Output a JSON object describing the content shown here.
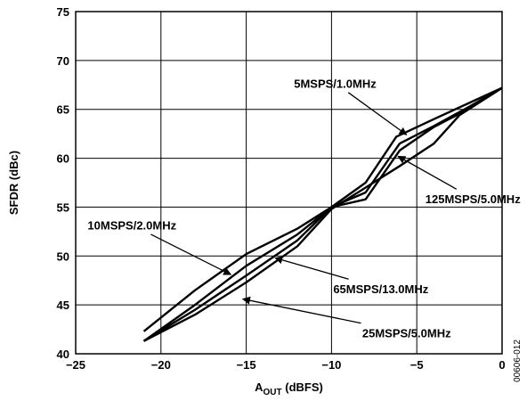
{
  "chart_data": {
    "type": "line",
    "title": "",
    "xlabel_main": "A",
    "xlabel_sub": "OUT",
    "xlabel_rest": " (dBFS)",
    "ylabel": "SFDR (dBc)",
    "xlim": [
      -25,
      0
    ],
    "ylim": [
      40,
      75
    ],
    "grid": true,
    "xticks": [
      -25,
      -20,
      -15,
      -10,
      -5,
      0
    ],
    "xtick_labels": [
      "−25",
      "−20",
      "−15",
      "−10",
      "−5",
      "0"
    ],
    "yticks": [
      40,
      45,
      50,
      55,
      60,
      65,
      70,
      75
    ],
    "ytick_labels": [
      "40",
      "45",
      "50",
      "55",
      "60",
      "65",
      "70",
      "75"
    ],
    "series": [
      {
        "name": "5MSPS/1.0MHz",
        "x": [
          -21,
          -18,
          -15,
          -12,
          -10,
          -8,
          -6.2,
          -4,
          -2,
          0
        ],
        "y": [
          42.3,
          46.5,
          50.2,
          52.8,
          55,
          57.5,
          62.2,
          64,
          65.6,
          67.2
        ]
      },
      {
        "name": "10MSPS/2.0MHz",
        "x": [
          -21,
          -18,
          -15,
          -12,
          -10,
          -8,
          -6,
          -4,
          -2,
          0
        ],
        "y": [
          41.3,
          45,
          49,
          52.2,
          55,
          56.5,
          61.5,
          63.3,
          65.2,
          67.2
        ]
      },
      {
        "name": "65MSPS/13.0MHz",
        "x": [
          -21,
          -18,
          -15,
          -12,
          -10,
          -8,
          -6,
          -4,
          -2,
          0
        ],
        "y": [
          41.3,
          44.5,
          48,
          51.6,
          55,
          55.8,
          60.8,
          63.2,
          65,
          67.2
        ]
      },
      {
        "name": "25MSPS/5.0MHz",
        "x": [
          -21,
          -18,
          -15,
          -12,
          -10,
          -8,
          -6,
          -4,
          -2.5,
          0
        ],
        "y": [
          41.3,
          44,
          47.3,
          51,
          54.8,
          57,
          59.2,
          61.5,
          64.4,
          67.2
        ]
      }
    ],
    "annotations": [
      {
        "text": "5MSPS/1.0MHz",
        "label_x": -12.2,
        "label_y": 67.2,
        "arrow_to_x": -5.6,
        "arrow_to_y": 62.4
      },
      {
        "text": "125MSPS/5.0MHz",
        "label_x": -4.5,
        "label_y": 55.4,
        "arrow_to_x": -6.1,
        "arrow_to_y": 60.2
      },
      {
        "text": "10MSPS/2.0MHz",
        "label_x": -24.3,
        "label_y": 52.7,
        "arrow_to_x": -15.9,
        "arrow_to_y": 48.1
      },
      {
        "text": "65MSPS/13.0MHz",
        "label_x": -9.9,
        "label_y": 46.2,
        "arrow_to_x": -13.3,
        "arrow_to_y": 49.8
      },
      {
        "text": "25MSPS/5.0MHz",
        "label_x": -8.2,
        "label_y": 41.7,
        "arrow_to_x": -15.2,
        "arrow_to_y": 45.6
      }
    ]
  },
  "figure_id": "00606-012"
}
